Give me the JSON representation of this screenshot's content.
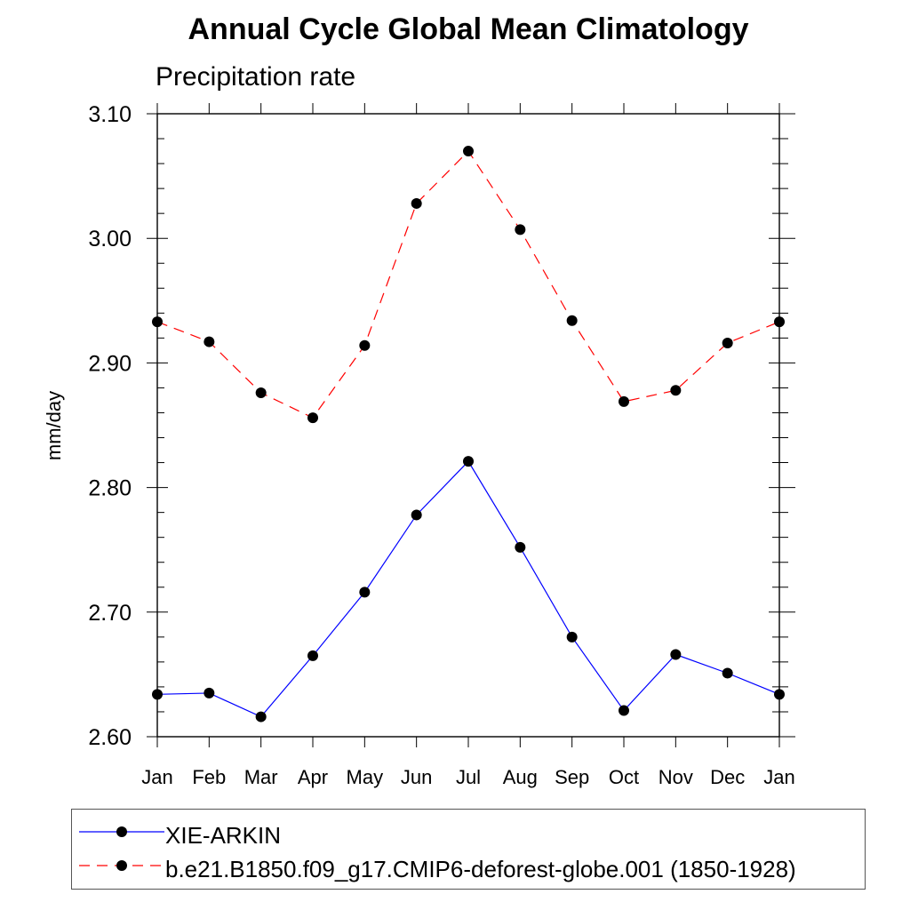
{
  "chart_data": {
    "type": "line",
    "title": "Annual Cycle Global Mean Climatology",
    "subtitle": "Precipitation rate",
    "xlabel": "",
    "ylabel": "mm/day",
    "ylim": [
      2.6,
      3.1
    ],
    "yticks": [
      "2.60",
      "2.70",
      "2.80",
      "2.90",
      "3.00",
      "3.10"
    ],
    "categories": [
      "Jan",
      "Feb",
      "Mar",
      "Apr",
      "May",
      "Jun",
      "Jul",
      "Aug",
      "Sep",
      "Oct",
      "Nov",
      "Dec",
      "Jan"
    ],
    "grid": false,
    "legend_position": "bottom",
    "series": [
      {
        "name": "XIE-ARKIN",
        "color": "#0000ff",
        "line_style": "solid",
        "marker": "circle",
        "values": [
          2.634,
          2.635,
          2.616,
          2.665,
          2.716,
          2.778,
          2.821,
          2.752,
          2.68,
          2.621,
          2.666,
          2.651,
          2.634
        ]
      },
      {
        "name": "b.e21.B1850.f09_g17.CMIP6-deforest-globe.001 (1850-1928)",
        "color": "#ff0000",
        "line_style": "dashed",
        "marker": "circle",
        "values": [
          2.933,
          2.917,
          2.876,
          2.856,
          2.914,
          3.028,
          3.07,
          3.007,
          2.934,
          2.869,
          2.878,
          2.916,
          2.933
        ]
      }
    ]
  }
}
